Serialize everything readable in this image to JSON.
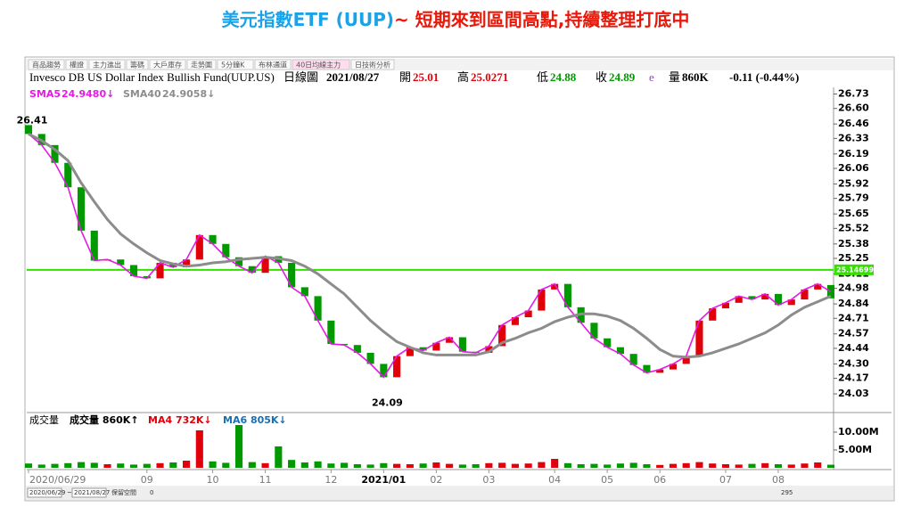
{
  "chart_data": {
    "type": "candlestick",
    "title": "美元指數ETF (UUP)",
    "subtitle": "~ 短期來到區間高點,持續整理打底中",
    "toolbar_tabs": [
      "商品趨勢",
      "權證",
      "主力進出",
      "籌碼",
      "大戶庫存",
      "走勢圖",
      "5分鐘K",
      "布林通道",
      "40日均線主力",
      "日技術分析"
    ],
    "quote": {
      "name": "Invesco DB US Dollar Index Bullish Fund(UUP.US)",
      "period": "日線圖",
      "date": "2021/08/27",
      "open_label": "開",
      "open": 25.01,
      "high_label": "高",
      "high": 25.0271,
      "low_label": "低",
      "low": 24.88,
      "close_label": "收",
      "close": 24.89,
      "flag": "e",
      "volume_label": "量",
      "volume": "860K",
      "change": "-0.11 (-0.44%)"
    },
    "categories": [
      "2020/06/29",
      null,
      null,
      null,
      null,
      null,
      null,
      null,
      null,
      "09",
      null,
      null,
      null,
      null,
      "10",
      null,
      null,
      null,
      "11",
      null,
      null,
      null,
      null,
      "12",
      null,
      null,
      null,
      "2021/01",
      null,
      null,
      null,
      "02",
      null,
      null,
      null,
      "03",
      null,
      null,
      null,
      null,
      "04",
      null,
      null,
      null,
      "05",
      null,
      null,
      null,
      "06",
      null,
      null,
      null,
      null,
      "07",
      null,
      null,
      null,
      "08",
      null,
      null,
      null,
      null
    ],
    "open": [
      26.45,
      26.37,
      26.27,
      26.11,
      25.89,
      25.5,
      25.23,
      25.24,
      25.19,
      25.09,
      25.07,
      25.21,
      25.17,
      25.24,
      25.46,
      25.38,
      25.26,
      25.18,
      25.12,
      25.27,
      25.21,
      24.99,
      24.91,
      24.69,
      24.48,
      24.47,
      24.4,
      24.3,
      24.18,
      24.37,
      24.45,
      24.42,
      24.49,
      24.54,
      24.41,
      24.4,
      24.46,
      24.65,
      24.72,
      24.78,
      24.97,
      25.02,
      24.81,
      24.67,
      24.53,
      24.45,
      24.39,
      24.29,
      24.22,
      24.25,
      24.3,
      24.37,
      24.69,
      24.8,
      24.85,
      24.91,
      24.88,
      24.93,
      24.83,
      24.88,
      24.97,
      25.01
    ],
    "close": [
      26.37,
      26.27,
      26.11,
      25.89,
      25.5,
      25.23,
      25.24,
      25.19,
      25.09,
      25.07,
      25.21,
      25.17,
      25.24,
      25.46,
      25.38,
      25.26,
      25.18,
      25.12,
      25.27,
      25.21,
      24.99,
      24.91,
      24.69,
      24.48,
      24.47,
      24.4,
      24.3,
      24.18,
      24.37,
      24.45,
      24.42,
      24.49,
      24.54,
      24.41,
      24.4,
      24.46,
      24.65,
      24.72,
      24.78,
      24.97,
      25.02,
      24.81,
      24.67,
      24.53,
      24.45,
      24.39,
      24.29,
      24.22,
      24.25,
      24.3,
      24.37,
      24.69,
      24.8,
      24.85,
      24.91,
      24.88,
      24.93,
      24.83,
      24.88,
      24.97,
      25.02,
      24.89
    ],
    "up_color": "#e0000a",
    "down_color": "#009a00",
    "series": [
      {
        "name": "SMA5",
        "legend_value": "24.9480↓",
        "color": "#e619e6",
        "values": [
          26.37,
          26.27,
          26.11,
          25.89,
          25.5,
          25.23,
          25.24,
          25.19,
          25.09,
          25.07,
          25.21,
          25.17,
          25.24,
          25.46,
          25.38,
          25.26,
          25.18,
          25.12,
          25.27,
          25.21,
          24.99,
          24.91,
          24.69,
          24.48,
          24.47,
          24.4,
          24.3,
          24.18,
          24.37,
          24.45,
          24.42,
          24.49,
          24.54,
          24.41,
          24.4,
          24.46,
          24.65,
          24.72,
          24.78,
          24.97,
          25.02,
          24.81,
          24.67,
          24.53,
          24.45,
          24.39,
          24.29,
          24.22,
          24.25,
          24.3,
          24.37,
          24.69,
          24.8,
          24.85,
          24.91,
          24.88,
          24.93,
          24.83,
          24.88,
          24.97,
          25.02,
          24.95
        ]
      },
      {
        "name": "SMA40",
        "legend_value": "24.9058↓",
        "color": "#8c8c8c",
        "values": [
          26.37,
          26.31,
          26.23,
          26.13,
          25.93,
          25.76,
          25.6,
          25.47,
          25.38,
          25.3,
          25.23,
          25.2,
          25.18,
          25.19,
          25.21,
          25.22,
          25.24,
          25.25,
          25.26,
          25.25,
          25.23,
          25.18,
          25.11,
          25.02,
          24.93,
          24.81,
          24.69,
          24.59,
          24.5,
          24.45,
          24.4,
          24.38,
          24.38,
          24.38,
          24.38,
          24.41,
          24.49,
          24.53,
          24.58,
          24.62,
          24.68,
          24.72,
          24.75,
          24.75,
          24.73,
          24.69,
          24.62,
          24.53,
          24.43,
          24.37,
          24.36,
          24.37,
          24.4,
          24.44,
          24.48,
          24.53,
          24.58,
          24.65,
          24.74,
          24.81,
          24.86,
          24.91
        ]
      }
    ],
    "ylim": [
      23.87,
      26.79
    ],
    "yticks": [
      26.73,
      {
        "value": 26.6,
        "label": "26.60"
      },
      26.46,
      26.33,
      26.19,
      26.06,
      25.92,
      25.79,
      25.65,
      25.52,
      25.38,
      25.25,
      25.11,
      24.98,
      24.84,
      24.71,
      24.57,
      24.44,
      {
        "value": 24.3,
        "label": "24.30"
      },
      24.17,
      24.03
    ],
    "reference_line": {
      "value": 25.14699,
      "label": "25.14699",
      "color": "#33e000"
    },
    "annotations": [
      {
        "label": "26.41",
        "value": 26.41
      },
      {
        "label": "24.09",
        "value": 24.09
      }
    ],
    "volume": {
      "labels": [
        "成交量",
        "成交量 860K↑",
        "MA4 732K↓",
        "MA6 805K↓"
      ],
      "label_colors": [
        "#000000",
        "#000000",
        "#e0000a",
        "#1a6fb0"
      ],
      "values": [
        1.2,
        0.9,
        1.1,
        1.3,
        1.6,
        1.4,
        1.0,
        1.2,
        0.9,
        1.1,
        1.3,
        1.5,
        2.0,
        10.5,
        1.8,
        1.4,
        12.0,
        1.6,
        1.3,
        6.0,
        2.2,
        1.5,
        1.8,
        1.2,
        1.4,
        1.0,
        0.9,
        1.3,
        1.1,
        1.0,
        1.2,
        1.5,
        1.1,
        0.9,
        1.0,
        1.3,
        1.4,
        1.1,
        1.2,
        1.6,
        2.5,
        1.3,
        1.0,
        1.1,
        0.9,
        1.2,
        1.4,
        1.0,
        0.8,
        1.1,
        1.3,
        1.6,
        1.2,
        1.0,
        0.9,
        1.1,
        1.3,
        1.0,
        0.9,
        1.2,
        1.5,
        0.86
      ],
      "ylim": [
        0,
        15
      ],
      "yticks": [
        {
          "value": 10,
          "label": "10.00M"
        },
        {
          "value": 5,
          "label": "5.00M"
        }
      ]
    },
    "footer": {
      "start": "2020/06/29",
      "range_sep": "~",
      "end": "2021/08/27",
      "reserve_label": "保留空間",
      "reserve": 0,
      "count": 295
    }
  }
}
